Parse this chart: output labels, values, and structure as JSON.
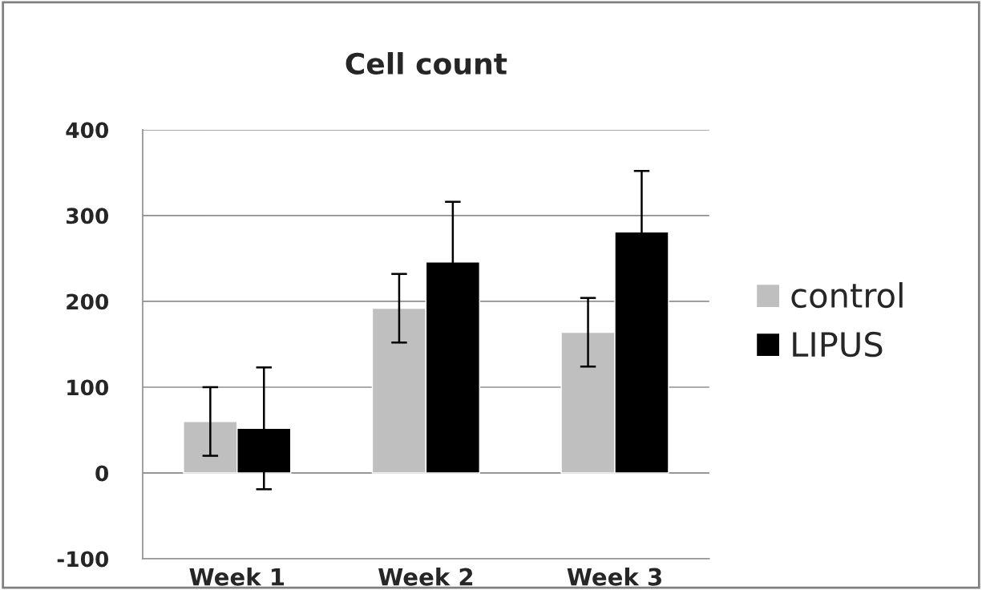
{
  "chart_data": {
    "type": "bar",
    "title": "Cell count",
    "categories": [
      "Week 1",
      "Week 2",
      "Week 3"
    ],
    "series": [
      {
        "name": "control",
        "color": "#bfbfbf",
        "values": [
          60,
          192,
          164
        ],
        "errors": [
          40,
          40,
          40
        ]
      },
      {
        "name": "LIPUS",
        "color": "#000000",
        "values": [
          52,
          246,
          281
        ],
        "errors": [
          71,
          70,
          71
        ]
      }
    ],
    "ylim": [
      -100,
      400
    ],
    "yticks": [
      -100,
      0,
      100,
      200,
      300,
      400
    ],
    "grid": "y",
    "legend": "right"
  }
}
